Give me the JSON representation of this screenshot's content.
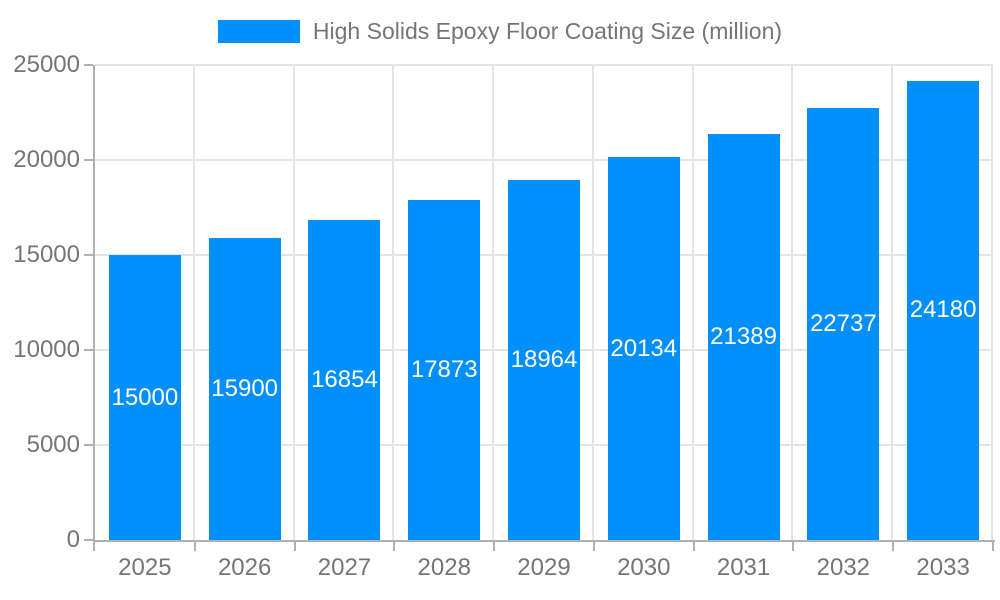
{
  "chart_data": {
    "type": "bar",
    "title": "",
    "categories": [
      "2025",
      "2026",
      "2027",
      "2028",
      "2029",
      "2030",
      "2031",
      "2032",
      "2033"
    ],
    "series": [
      {
        "name": "High Solids Epoxy Floor Coating Size (million)",
        "values": [
          15000,
          15900,
          16854,
          17873,
          18964,
          20134,
          21389,
          22737,
          24180
        ]
      }
    ],
    "xlabel": "",
    "ylabel": "",
    "ylim": [
      0,
      25000
    ],
    "yticks": [
      0,
      5000,
      10000,
      15000,
      20000,
      25000
    ],
    "grid": true,
    "legend_position": "top",
    "bar_labels_visible": true,
    "colors": {
      "bar": "#008FFB",
      "bar_label_text": "#ffffff",
      "axis_text": "#757575",
      "legend_text": "#757575",
      "gridline": "#e4e4e4",
      "axis_line": "#b0b0b0",
      "background": "#ffffff"
    }
  }
}
